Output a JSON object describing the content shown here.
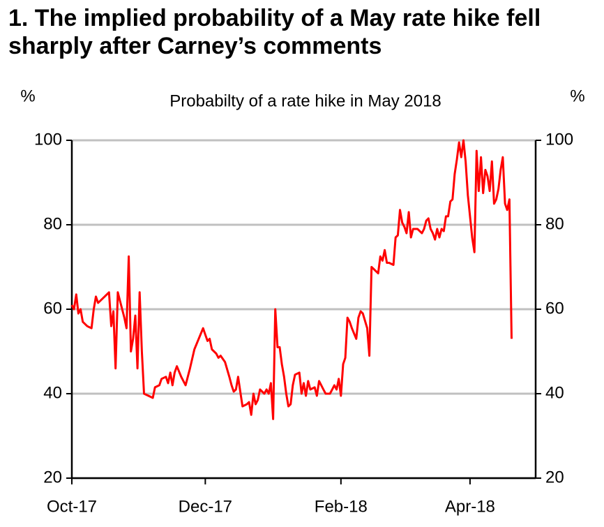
{
  "chart_data": {
    "type": "line",
    "title": "1. The implied probability of a May rate hike fell sharply after Carney’s comments",
    "subtitle": "Probabilty of a rate hike in May 2018",
    "y_label": "%",
    "y2_label": "%",
    "color": "#ff0000",
    "grid": true,
    "x": [
      0,
      1,
      2,
      3,
      4,
      5,
      7,
      9,
      10,
      11,
      12,
      14,
      16,
      17,
      18,
      19,
      20,
      21,
      22,
      24,
      25,
      26,
      27,
      28,
      29,
      30,
      31,
      32,
      33,
      35,
      37,
      38,
      40,
      41,
      43,
      44,
      45,
      46,
      47,
      48,
      50,
      52,
      54,
      56,
      58,
      60,
      61,
      62,
      63,
      64,
      66,
      67,
      68,
      70,
      72,
      73,
      74,
      75,
      76,
      77,
      78,
      80,
      81,
      82,
      83,
      84,
      85,
      86,
      88,
      89,
      90,
      91,
      92,
      93,
      94,
      95,
      96,
      97,
      98,
      99,
      100,
      101,
      102,
      104,
      105,
      106,
      107,
      108,
      109,
      111,
      112,
      113,
      114,
      115,
      116,
      118,
      119,
      120,
      121,
      122,
      123,
      124,
      125,
      126,
      127,
      128,
      130,
      131,
      132,
      133,
      135,
      136,
      137,
      138,
      140,
      141,
      142,
      143,
      144,
      145,
      147,
      148,
      149,
      150,
      151,
      152,
      153,
      154,
      155,
      156,
      158,
      160,
      161,
      162,
      163,
      164,
      165,
      166,
      167,
      168,
      169,
      170,
      171,
      172,
      173,
      174,
      175,
      176,
      177,
      178,
      179,
      180,
      181,
      183,
      184,
      185,
      186,
      187,
      188,
      189,
      190,
      191,
      192,
      193,
      194,
      195,
      196,
      197,
      198,
      199,
      200,
      201
    ],
    "values": [
      61,
      60,
      63.5,
      59,
      60,
      57,
      56,
      55.5,
      60,
      63,
      61.5,
      62.5,
      63.5,
      64,
      56,
      59.5,
      46,
      64,
      62,
      58,
      55.5,
      72.5,
      50,
      53,
      58.5,
      46,
      64,
      50,
      40,
      39.5,
      39,
      41.5,
      42,
      43.5,
      44,
      42.5,
      45,
      42,
      45,
      46.5,
      44,
      42,
      46,
      50.5,
      53,
      55.5,
      54,
      52.5,
      53,
      50.5,
      49.5,
      48.5,
      49,
      47.5,
      44,
      42,
      40.5,
      41,
      44,
      40.5,
      37,
      37.5,
      38,
      35,
      40,
      37.5,
      38.5,
      41,
      40,
      41,
      40,
      42.5,
      34,
      60,
      51,
      51,
      47,
      44,
      40,
      37,
      37.5,
      42,
      44.5,
      45,
      40,
      42.5,
      39.5,
      43,
      41,
      41.5,
      39.5,
      43,
      42,
      41,
      40,
      40,
      41,
      42,
      41,
      43.5,
      39.5,
      47,
      48.5,
      58,
      57,
      55.5,
      53,
      58,
      59.5,
      59,
      55.5,
      49,
      70,
      69.5,
      68.5,
      72.5,
      71.5,
      74,
      71,
      71,
      70.5,
      77,
      77.5,
      83.5,
      80.5,
      79.5,
      78,
      83,
      77,
      79,
      79,
      78,
      79,
      81,
      81.5,
      79,
      78,
      76.5,
      79,
      77,
      79,
      78.5,
      82,
      82,
      85.5,
      86,
      92,
      95.5,
      99.5,
      96,
      100,
      95,
      87,
      77,
      73.5,
      97.5,
      88,
      96,
      87.5,
      93,
      91.5,
      88,
      95,
      85,
      86,
      88.5,
      93,
      96,
      85,
      83.5,
      86,
      53
    ],
    "xlim": [
      0,
      212
    ],
    "xticks": [
      {
        "value": 0,
        "label": "Oct-17"
      },
      {
        "value": 61,
        "label": "Dec-17"
      },
      {
        "value": 123,
        "label": "Feb-18"
      },
      {
        "value": 182,
        "label": "Apr-18"
      }
    ],
    "ylim": [
      20,
      100
    ],
    "yticks": [
      20,
      40,
      60,
      80,
      100
    ],
    "y2lim": [
      20,
      100
    ],
    "y2ticks": [
      20,
      40,
      60,
      80,
      100
    ]
  }
}
